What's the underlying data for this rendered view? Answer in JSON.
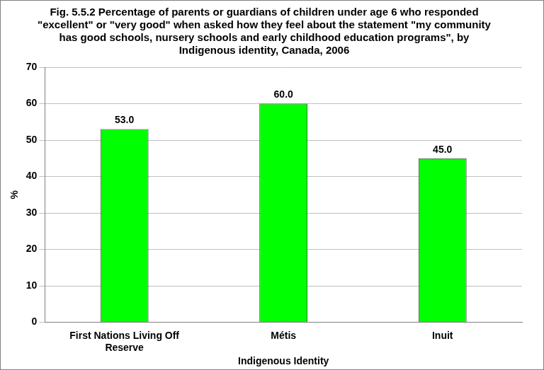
{
  "chart_data": {
    "type": "bar",
    "title": "Fig. 5.5.2 Percentage of parents or guardians of children under age 6 who responded \"excellent\" or \"very good\" when asked how they feel about the statement \"my community has good schools, nursery schools and early childhood education programs\", by Indigenous identity, Canada, 2006",
    "xlabel": "Indigenous Identity",
    "ylabel": "%",
    "categories": [
      "First Nations Living Off Reserve",
      "Métis",
      "Inuit"
    ],
    "values": [
      53,
      60,
      45
    ],
    "value_labels": [
      "53.0",
      "60.0",
      "45.0"
    ],
    "data_labels": true,
    "color": "#00ff00",
    "ylim": [
      0,
      70
    ],
    "yticks": [
      0,
      10,
      20,
      30,
      40,
      50,
      60,
      70
    ],
    "grid": true
  }
}
